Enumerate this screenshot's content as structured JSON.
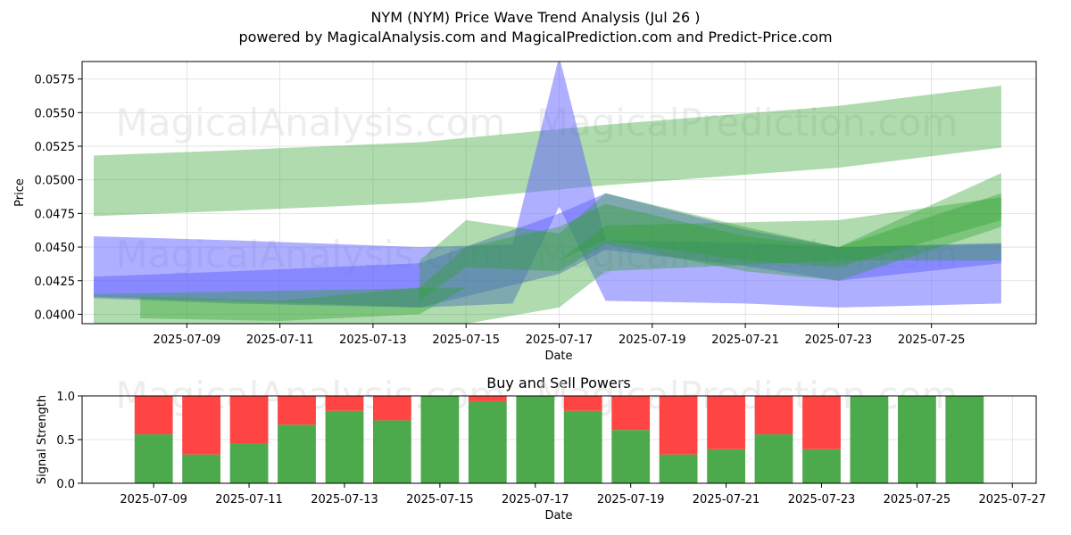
{
  "title": "NYM (NYM) Price Wave Trend Analysis (Jul 26 )",
  "subtitle": "powered by MagicalAnalysis.com and MagicalPrediction.com and Predict-Price.com",
  "watermarks": [
    "MagicalAnalysis.com",
    "MagicalPrediction.com"
  ],
  "colors": {
    "green_band": "#2ca02c",
    "blue_band": "#6666ff",
    "buy": "#4caa4c",
    "sell": "#ff4444",
    "grid": "#dddddd"
  },
  "chart_data": [
    {
      "type": "area",
      "title": "",
      "xlabel": "Date",
      "ylabel": "Price",
      "x_ticks": [
        "2025-07-09",
        "2025-07-11",
        "2025-07-13",
        "2025-07-15",
        "2025-07-17",
        "2025-07-19",
        "2025-07-21",
        "2025-07-23",
        "2025-07-25"
      ],
      "y_ticks": [
        "0.0400",
        "0.0425",
        "0.0450",
        "0.0475",
        "0.0500",
        "0.0525",
        "0.0550",
        "0.0575"
      ],
      "xlim": [
        "2025-07-06 18:00",
        "2025-07-27 06:00"
      ],
      "ylim": [
        0.0393,
        0.0588
      ],
      "grid": true,
      "series": [
        {
          "color": "green",
          "x": [
            "2025-07-07",
            "2025-07-10",
            "2025-07-14",
            "2025-07-18",
            "2025-07-23",
            "2025-07-26T12"
          ],
          "upper": [
            0.0518,
            0.0522,
            0.0528,
            0.0541,
            0.0555,
            0.057
          ],
          "lower": [
            0.0473,
            0.0477,
            0.0483,
            0.0496,
            0.0509,
            0.0524
          ]
        },
        {
          "color": "blue",
          "x": [
            "2025-07-07",
            "2025-07-10",
            "2025-07-14",
            "2025-07-16",
            "2025-07-17",
            "2025-07-18",
            "2025-07-21",
            "2025-07-23",
            "2025-07-26T12"
          ],
          "upper": [
            0.0458,
            0.0455,
            0.045,
            0.0452,
            0.0592,
            0.0455,
            0.0453,
            0.045,
            0.0453
          ],
          "lower": [
            0.0413,
            0.041,
            0.0405,
            0.0408,
            0.048,
            0.041,
            0.0408,
            0.0405,
            0.0408
          ]
        },
        {
          "color": "blue",
          "x": [
            "2025-07-07",
            "2025-07-10",
            "2025-07-14",
            "2025-07-17",
            "2025-07-18",
            "2025-07-21",
            "2025-07-23",
            "2025-07-26T12"
          ],
          "upper": [
            0.0428,
            0.0432,
            0.0438,
            0.0475,
            0.049,
            0.0463,
            0.045,
            0.0452
          ],
          "lower": [
            0.0412,
            0.0408,
            0.0405,
            0.043,
            0.0448,
            0.0436,
            0.0425,
            0.0438
          ]
        },
        {
          "color": "green",
          "x": [
            "2025-07-08",
            "2025-07-11",
            "2025-07-14",
            "2025-07-15",
            "2025-07-17",
            "2025-07-18",
            "2025-07-21",
            "2025-07-23",
            "2025-07-26T12"
          ],
          "upper": [
            0.0413,
            0.041,
            0.042,
            0.045,
            0.0465,
            0.0482,
            0.0458,
            0.045,
            0.049
          ],
          "lower": [
            0.0397,
            0.0395,
            0.04,
            0.042,
            0.044,
            0.0455,
            0.044,
            0.0435,
            0.047
          ]
        },
        {
          "color": "green",
          "x": [
            "2025-07-14",
            "2025-07-15",
            "2025-07-17",
            "2025-07-18",
            "2025-07-21",
            "2025-07-23",
            "2025-07-26T12"
          ],
          "upper": [
            0.044,
            0.047,
            0.046,
            0.049,
            0.0465,
            0.045,
            0.0505
          ],
          "lower": [
            0.041,
            0.0435,
            0.0432,
            0.0452,
            0.0432,
            0.0425,
            0.0465
          ]
        },
        {
          "color": "green",
          "x": [
            "2025-07-07",
            "2025-07-15",
            "2025-07-17",
            "2025-07-18",
            "2025-07-23",
            "2025-07-26T12"
          ],
          "upper": [
            0.0415,
            0.042,
            0.044,
            0.0466,
            0.047,
            0.0487
          ],
          "lower": [
            0.038,
            0.0393,
            0.0405,
            0.0432,
            0.044,
            0.044
          ]
        }
      ]
    },
    {
      "type": "bar",
      "title": "Buy and Sell Powers",
      "xlabel": "Date",
      "ylabel": "Signal Strength",
      "x_ticks": [
        "2025-07-09",
        "2025-07-11",
        "2025-07-13",
        "2025-07-15",
        "2025-07-17",
        "2025-07-19",
        "2025-07-21",
        "2025-07-23",
        "2025-07-25",
        "2025-07-27"
      ],
      "y_ticks": [
        "0.0",
        "0.5",
        "1.0"
      ],
      "ylim": [
        0,
        1
      ],
      "grid": true,
      "categories": [
        "2025-07-09",
        "2025-07-10",
        "2025-07-11",
        "2025-07-12",
        "2025-07-13",
        "2025-07-14",
        "2025-07-15",
        "2025-07-16",
        "2025-07-17",
        "2025-07-18",
        "2025-07-19",
        "2025-07-20",
        "2025-07-21",
        "2025-07-22",
        "2025-07-23",
        "2025-07-24",
        "2025-07-25",
        "2025-07-26"
      ],
      "series": [
        {
          "values": [
            0.56,
            0.33,
            0.45,
            0.67,
            0.83,
            0.72,
            1.0,
            0.94,
            1.0,
            0.83,
            0.61,
            0.33,
            0.39,
            0.56,
            0.39,
            1.0,
            1.0,
            1.0
          ]
        },
        {
          "values": [
            0.44,
            0.67,
            0.55,
            0.33,
            0.17,
            0.28,
            0.0,
            0.06,
            0.0,
            0.17,
            0.39,
            0.67,
            0.61,
            0.44,
            0.61,
            0.0,
            0.0,
            0.0
          ]
        }
      ]
    }
  ]
}
